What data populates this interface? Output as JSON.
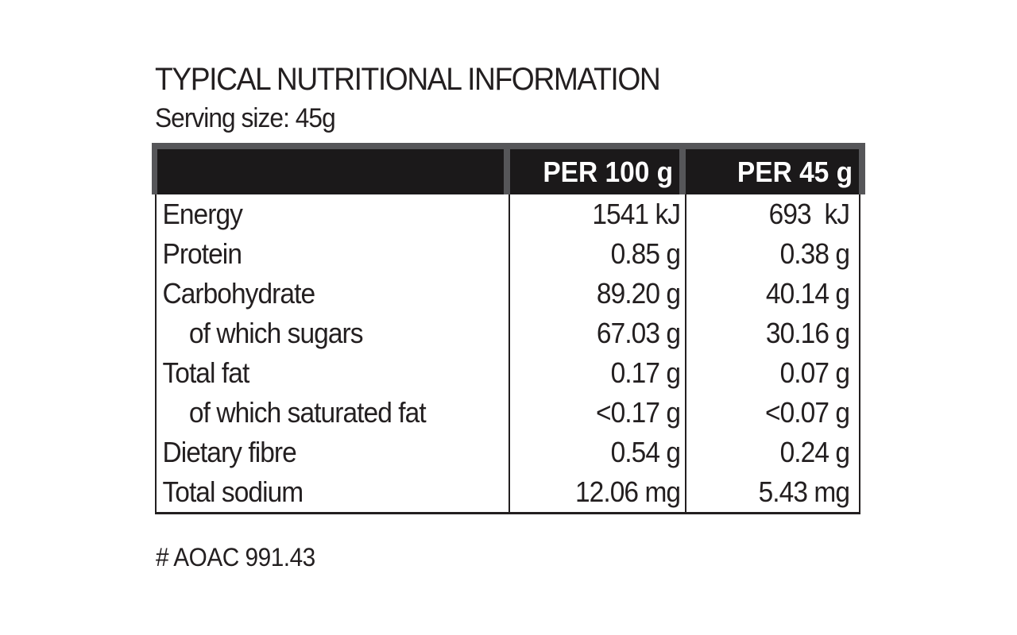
{
  "title": "TYPICAL NUTRITIONAL INFORMATION",
  "serving_size": "Serving size: 45g",
  "table": {
    "columns": [
      "",
      "PER 100 g",
      "PER 45 g"
    ],
    "rows": [
      {
        "label": "Energy",
        "per_100g": "1541 kJ",
        "per_45g": "693  kJ"
      },
      {
        "label": "Protein",
        "per_100g": "0.85 g",
        "per_45g": "0.38 g"
      },
      {
        "label": "Carbohydrate",
        "per_100g": "89.20 g",
        "per_45g": "40.14 g"
      },
      {
        "label": "of which sugars",
        "per_100g": "67.03 g",
        "per_45g": "30.16 g"
      },
      {
        "label": "Total fat",
        "per_100g": "0.17 g",
        "per_45g": "0.07 g"
      },
      {
        "label": "of which saturated fat",
        "per_100g": "<0.17 g",
        "per_45g": "<0.07 g"
      },
      {
        "label": "Dietary fibre",
        "per_100g": "0.54 g",
        "per_45g": "0.24 g"
      },
      {
        "label": "Total sodium",
        "per_100g": "12.06 mg",
        "per_45g": "5.43 mg"
      }
    ]
  },
  "footnote": "# AOAC 991.43",
  "colors": {
    "header_frame": "#565659",
    "header_cell_bg": "#1b191a",
    "header_text": "#ffffff",
    "body_text": "#231f20",
    "border": "#231f20",
    "background": "#ffffff"
  }
}
